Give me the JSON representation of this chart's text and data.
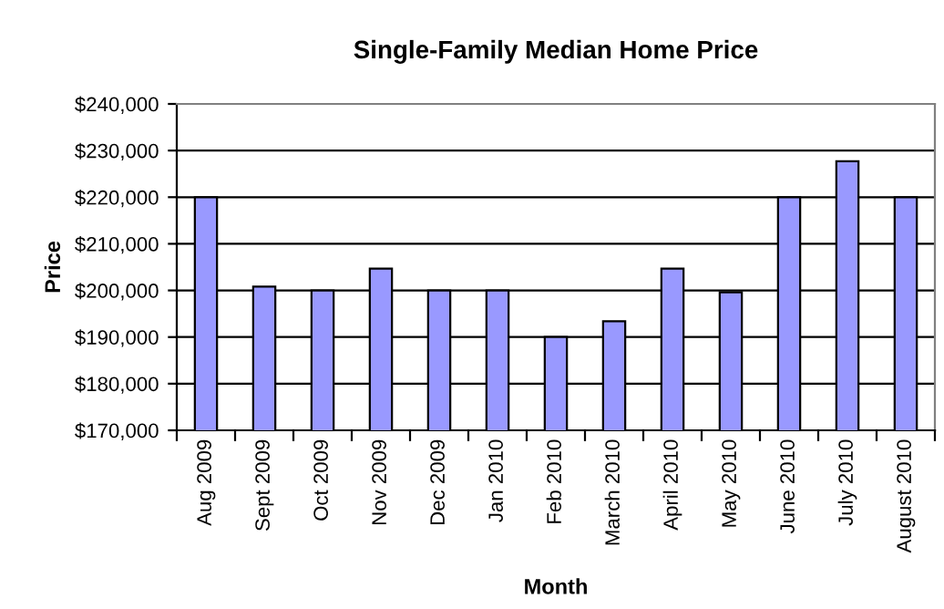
{
  "chart_data": {
    "type": "bar",
    "title": "Single-Family Median Home Price",
    "xlabel": "Month",
    "ylabel": "Price",
    "categories": [
      "Aug 2009",
      "Sept 2009",
      "Oct 2009",
      "Nov 2009",
      "Dec 2009",
      "Jan 2010",
      "Feb 2010",
      "March 2010",
      "April 2010",
      "May 2010",
      "June 2010",
      "July 2010",
      "August 2010"
    ],
    "values": [
      220000,
      200800,
      200000,
      204700,
      200000,
      200000,
      190000,
      193400,
      204700,
      199600,
      220000,
      227700,
      220000
    ],
    "color": "#9999ff",
    "ylim": [
      170000,
      240000
    ],
    "yticks": [
      {
        "value": 170000,
        "label": "$170,000"
      },
      {
        "value": 180000,
        "label": "$180,000"
      },
      {
        "value": 190000,
        "label": "$190,000"
      },
      {
        "value": 200000,
        "label": "$200,000"
      },
      {
        "value": 210000,
        "label": "$210,000"
      },
      {
        "value": 220000,
        "label": "$220,000"
      },
      {
        "value": 230000,
        "label": "$230,000"
      },
      {
        "value": 240000,
        "label": "$240,000"
      }
    ],
    "grid": "y",
    "legend": false
  }
}
